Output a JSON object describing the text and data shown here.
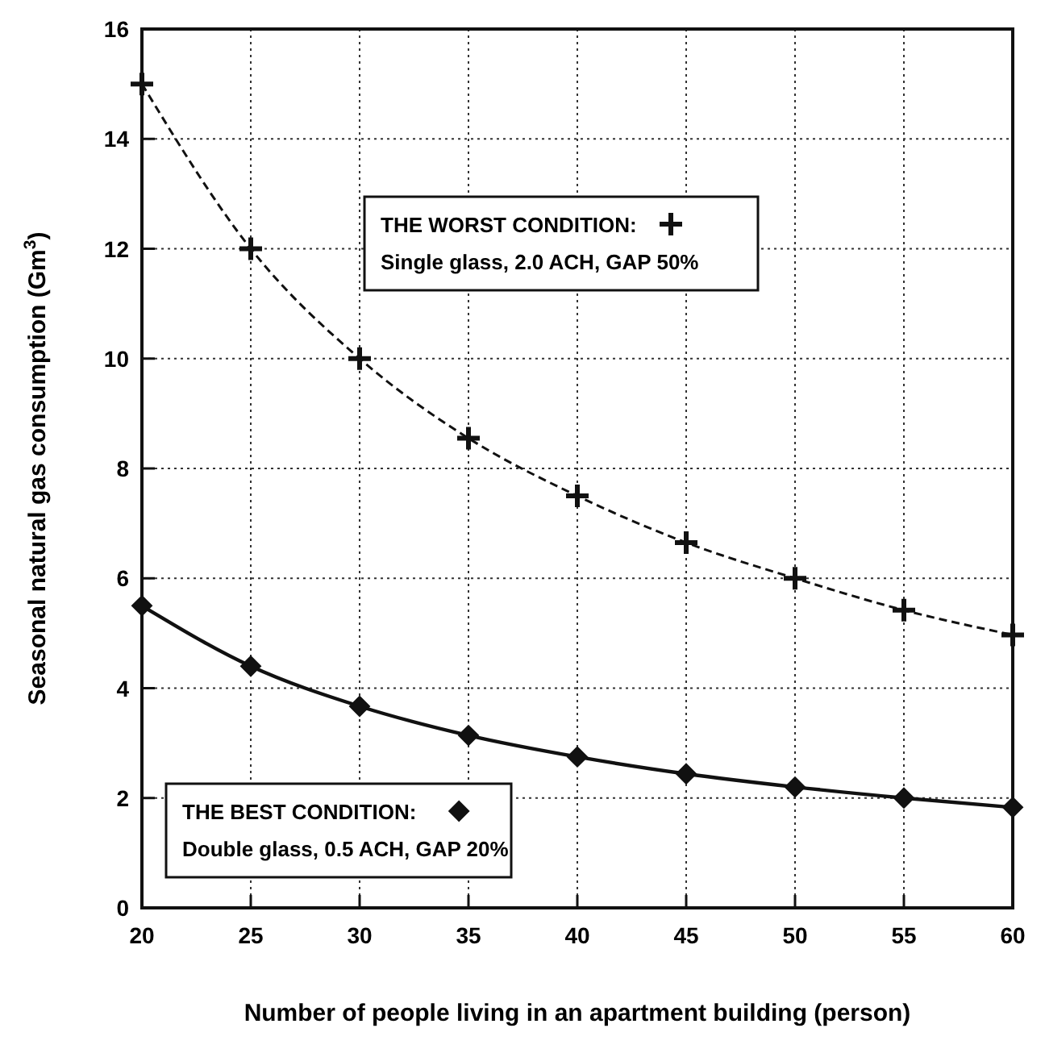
{
  "chart_data": {
    "type": "line",
    "xlabel": "Number of people living in an apartment building (person)",
    "ylabel": "Seasonal natural gas consumption (Gm$^{3}$)",
    "x": [
      20,
      25,
      30,
      35,
      40,
      45,
      50,
      55,
      60
    ],
    "series": [
      {
        "name": "THE WORST CONDITION:",
        "color": "#111111",
        "marker": "cross",
        "line_style": "dashed",
        "values": [
          15,
          12,
          10,
          8.55,
          7.5,
          6.65,
          6,
          5.42,
          4.97
        ]
      },
      {
        "name": "THE BEST CONDITION:",
        "color": "#111111",
        "marker": "diamond",
        "line_style": "solid",
        "values": [
          5.5,
          4.4,
          3.67,
          3.14,
          2.75,
          2.44,
          2.2,
          2.0,
          1.83
        ]
      }
    ],
    "annotations": [
      "Single glass, 2.0 ACH, GAP 50%",
      "Double glass, 0.5 ACH, GAP 20%"
    ],
    "xlim": [
      20,
      60
    ],
    "xticks": [
      20,
      25,
      30,
      35,
      40,
      45,
      50,
      55,
      60
    ],
    "ylim": [
      0,
      16
    ],
    "yticks": [
      0,
      2,
      4,
      6,
      8,
      10,
      12,
      14,
      16
    ],
    "grid": true,
    "legend": "bottom left"
  }
}
